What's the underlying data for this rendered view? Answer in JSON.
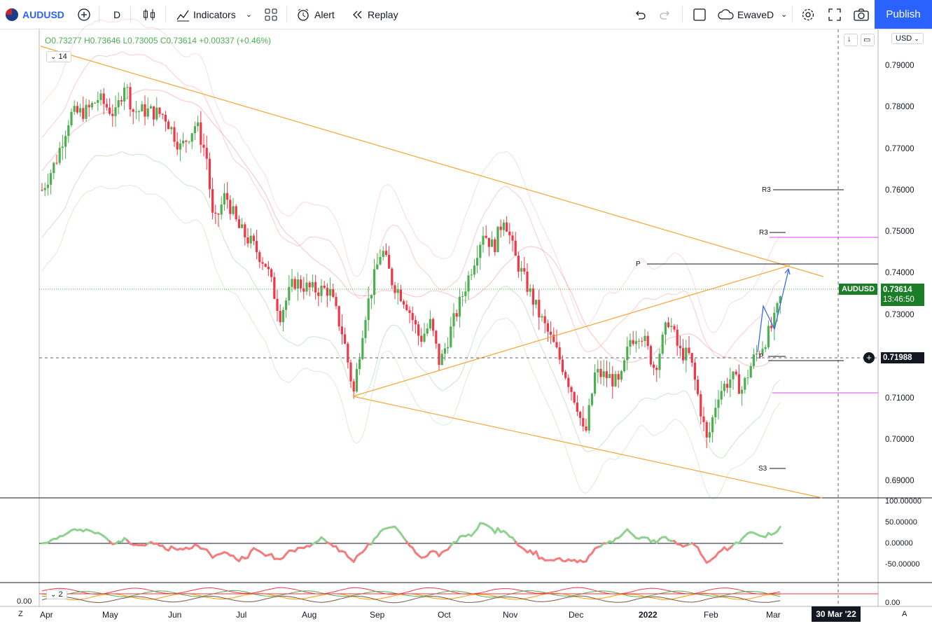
{
  "symbol": "AUDUSD",
  "interval": "D",
  "toolbar": {
    "indicators_label": "Indicators",
    "alert_label": "Alert",
    "replay_label": "Replay",
    "layout_name": "EwaveD",
    "publish_label": "Publish"
  },
  "legend": {
    "open": "O0.73277",
    "high": "H0.73646",
    "low": "L0.73005",
    "close": "C0.73614",
    "change": "+0.00337 (+0.46%)",
    "indicator_count": "14"
  },
  "currency": "USD",
  "price_axis": [
    "0.79000",
    "0.78000",
    "0.77000",
    "0.76000",
    "0.75000",
    "0.74000",
    "0.73000",
    "0.72000",
    "0.71000",
    "0.70000",
    "0.69000"
  ],
  "last_price": {
    "symbol": "AUDUSD",
    "price": "0.73614",
    "countdown": "13:46:50"
  },
  "crosshair_price": "0.71988",
  "pivot_labels": {
    "r3_a": "R3",
    "r3_b": "R3",
    "p_a": "P",
    "p_b": "P",
    "s3": "S3"
  },
  "osc_axis": [
    "100.00000",
    "50.00000",
    "0.00000",
    "-50.00000"
  ],
  "osc2_axis": [
    "0.00"
  ],
  "osc2_left": "0.00",
  "osc2_count": "2",
  "time_axis": [
    "Apr",
    "May",
    "Jun",
    "Jul",
    "Aug",
    "Sep",
    "Oct",
    "Nov",
    "Dec",
    "2022",
    "Feb",
    "Mar"
  ],
  "crosshair_date": "30 Mar '22",
  "bottom_left": "Z",
  "bottom_right": "A",
  "colors": {
    "up": "#4caf50",
    "down": "#f23645",
    "trend": "#f7a532",
    "accent": "#2962ff",
    "last_bg": "#1b7d27",
    "magenta": "#e040fb"
  }
}
